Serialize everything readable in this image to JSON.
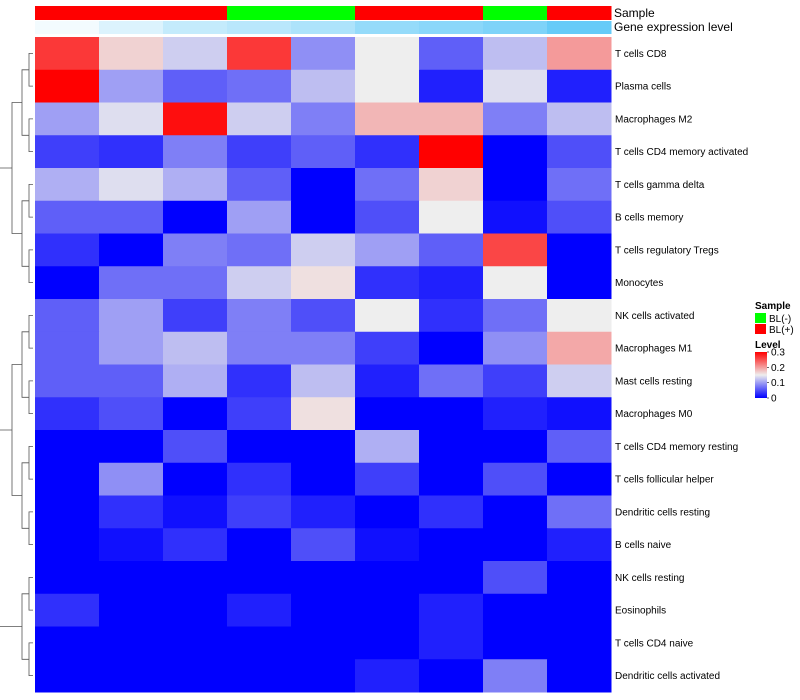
{
  "chart_data": {
    "type": "heatmap",
    "title": "",
    "annotation_labels": [
      "Sample",
      "Gene expression level"
    ],
    "columns": 9,
    "sample_groups": [
      "BL(+)",
      "BL(+)",
      "BL(+)",
      "BL(-)",
      "BL(-)",
      "BL(+)",
      "BL(+)",
      "BL(-)",
      "BL(+)"
    ],
    "expression_levels": [
      0.02,
      0.06,
      0.1,
      0.12,
      0.14,
      0.18,
      0.2,
      0.22,
      0.26
    ],
    "rows": [
      "T cells CD8",
      "Plasma cells",
      "Macrophages M2",
      "T cells CD4 memory activated",
      "T cells gamma delta",
      "B cells memory",
      "T cells regulatory  Tregs",
      "Monocytes",
      "NK cells activated",
      "Macrophages M1",
      "Mast cells resting",
      "Macrophages M0",
      "T cells CD4 memory resting",
      "T cells follicular helper",
      "Dendritic cells resting",
      "B cells naive",
      "NK cells resting",
      "Eosinophils",
      "T cells CD4 naive",
      "Dendritic cells activated"
    ],
    "values": [
      [
        0.28,
        0.17,
        0.13,
        0.28,
        0.09,
        0.15,
        0.06,
        0.12,
        0.21
      ],
      [
        0.32,
        0.1,
        0.06,
        0.07,
        0.12,
        0.15,
        0.02,
        0.14,
        0.02
      ],
      [
        0.1,
        0.14,
        0.31,
        0.13,
        0.08,
        0.19,
        0.19,
        0.08,
        0.12
      ],
      [
        0.04,
        0.03,
        0.08,
        0.04,
        0.06,
        0.03,
        0.32,
        0.0,
        0.05
      ],
      [
        0.11,
        0.14,
        0.11,
        0.06,
        0.0,
        0.07,
        0.17,
        0.0,
        0.07
      ],
      [
        0.06,
        0.06,
        0.0,
        0.1,
        0.0,
        0.05,
        0.15,
        0.01,
        0.05
      ],
      [
        0.03,
        0.0,
        0.08,
        0.07,
        0.13,
        0.1,
        0.06,
        0.27,
        0.0
      ],
      [
        0.0,
        0.07,
        0.07,
        0.13,
        0.16,
        0.03,
        0.02,
        0.15,
        0.0
      ],
      [
        0.06,
        0.1,
        0.04,
        0.08,
        0.05,
        0.15,
        0.03,
        0.07,
        0.15
      ],
      [
        0.06,
        0.1,
        0.12,
        0.08,
        0.08,
        0.04,
        0.0,
        0.09,
        0.2
      ],
      [
        0.06,
        0.06,
        0.11,
        0.03,
        0.12,
        0.02,
        0.07,
        0.04,
        0.13
      ],
      [
        0.03,
        0.05,
        0.0,
        0.04,
        0.16,
        0.0,
        0.0,
        0.02,
        0.01
      ],
      [
        0.0,
        0.0,
        0.05,
        0.0,
        0.0,
        0.11,
        0.0,
        0.0,
        0.06
      ],
      [
        0.0,
        0.09,
        0.0,
        0.03,
        0.0,
        0.04,
        0.0,
        0.05,
        0.0
      ],
      [
        0.0,
        0.03,
        0.01,
        0.04,
        0.02,
        0.0,
        0.03,
        0.0,
        0.07
      ],
      [
        0.0,
        0.01,
        0.03,
        0.0,
        0.05,
        0.01,
        0.0,
        0.0,
        0.02
      ],
      [
        0.0,
        0.0,
        0.0,
        0.0,
        0.0,
        0.0,
        0.0,
        0.05,
        0.0
      ],
      [
        0.03,
        0.0,
        0.0,
        0.02,
        0.0,
        0.0,
        0.02,
        0.0,
        0.0
      ],
      [
        0.0,
        0.0,
        0.0,
        0.0,
        0.0,
        0.0,
        0.02,
        0.0,
        0.0
      ],
      [
        0.0,
        0.0,
        0.0,
        0.0,
        0.0,
        0.02,
        0.0,
        0.08,
        0.0
      ]
    ],
    "color_scale": {
      "min": 0,
      "mid": 0.15,
      "max": 0.32,
      "low_color": "#0000ff",
      "mid_color": "#eeeeee",
      "high_color": "#ff0000"
    },
    "legend": {
      "sample": {
        "title": "Sample",
        "entries": [
          {
            "label": "BL(-)",
            "color": "#00ff00"
          },
          {
            "label": "BL(+)",
            "color": "#ff0000"
          }
        ]
      },
      "level": {
        "title": "Level",
        "ticks": [
          0.3,
          0.2,
          0.1,
          0
        ]
      }
    },
    "expression_scale": {
      "min": 0,
      "max": 0.3,
      "low_color": "#ffffff",
      "high_color": "#4fc3f7"
    }
  }
}
